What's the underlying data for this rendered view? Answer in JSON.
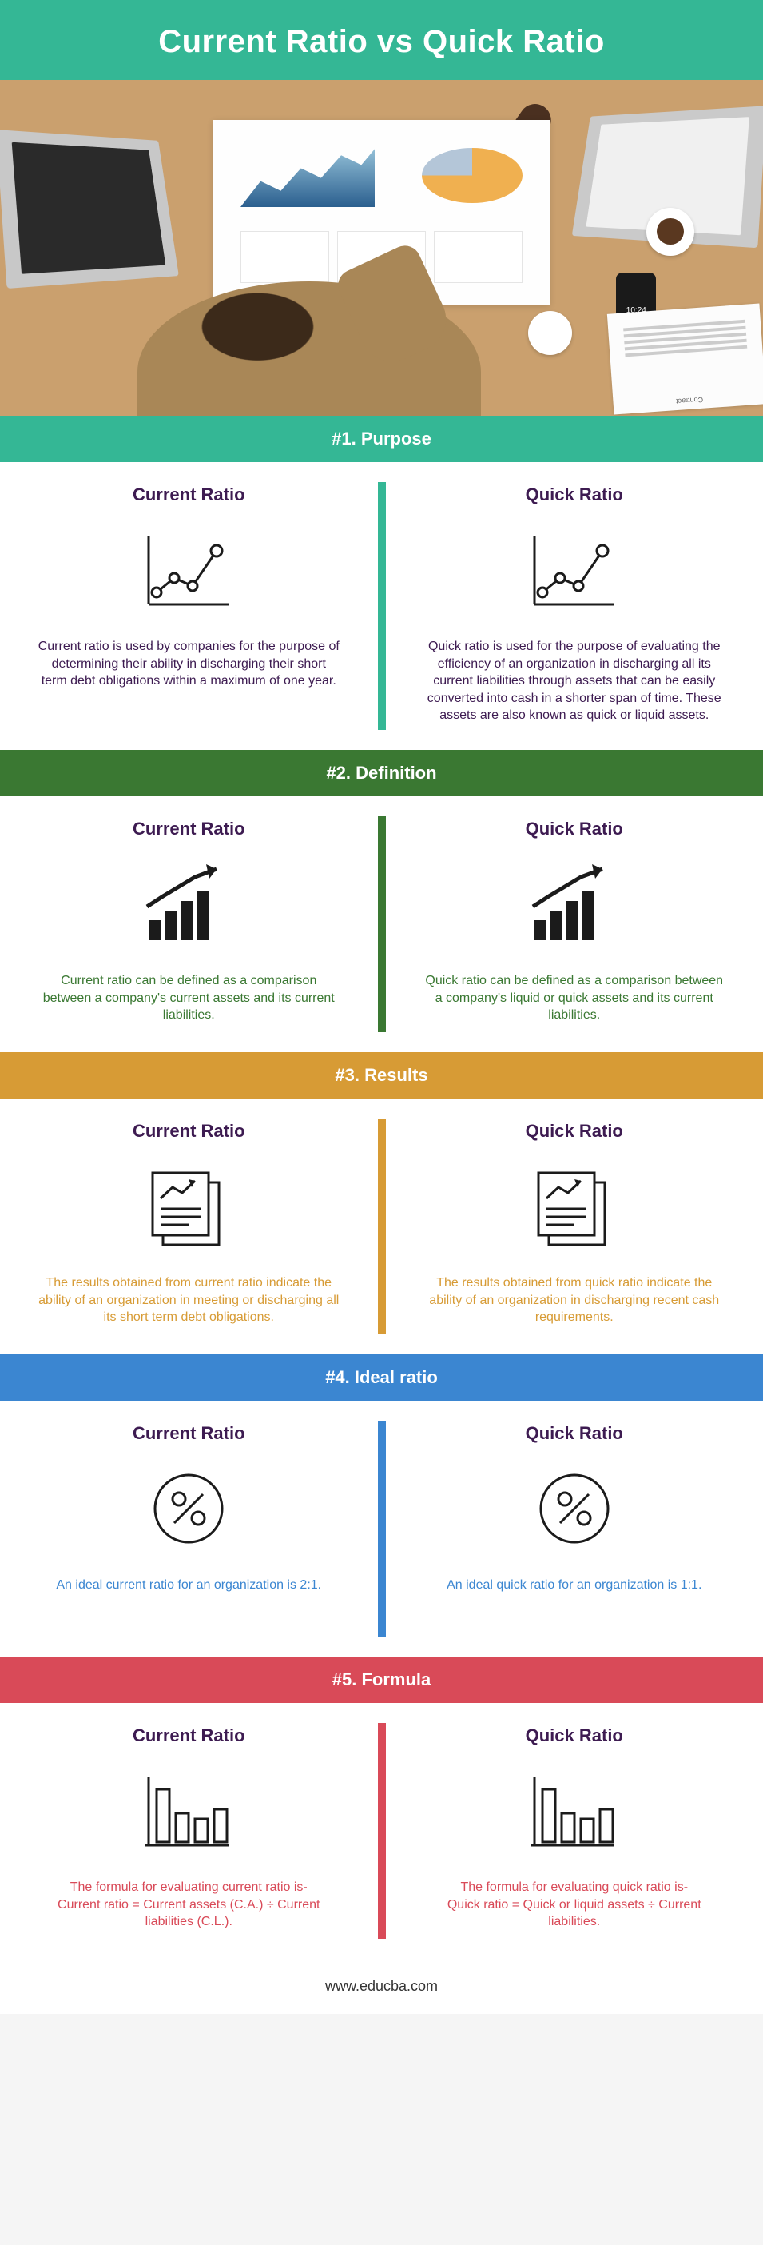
{
  "page_title": "Current Ratio vs Quick Ratio",
  "header_bg": "#34b795",
  "footer_text": "www.educba.com",
  "col_left_title": "Current Ratio",
  "col_right_title": "Quick Ratio",
  "title_color": "#3d1b51",
  "icon_stroke": "#1b1b1b",
  "sections": [
    {
      "num": "#1.",
      "label": "Purpose",
      "header_bg": "#34b795",
      "divider_bg": "#34b795",
      "text_color": "#3d1b51",
      "icon": "linechart",
      "left_text": "Current ratio is used by companies for the purpose of determining their ability in discharging their short term debt obligations within a maximum of one year.",
      "right_text": "Quick ratio is used for the purpose of evaluating the efficiency of an organization in discharging all its current liabilities through assets that can be easily converted into cash in a shorter span of time. These assets are also known as quick or liquid assets."
    },
    {
      "num": "#2.",
      "label": "Definition",
      "header_bg": "#3a7832",
      "divider_bg": "#3a7832",
      "text_color": "#3a7832",
      "icon": "growbar",
      "left_text": "Current ratio can be defined as a comparison between a company's current assets and its current liabilities.",
      "right_text": "Quick ratio can be defined as a comparison between a company's liquid or quick assets and its current liabilities."
    },
    {
      "num": "#3.",
      "label": "Results",
      "header_bg": "#d79b35",
      "divider_bg": "#d79b35",
      "text_color": "#d79b35",
      "icon": "docs",
      "left_text": "The results obtained from current ratio indicate the ability of an organization in meeting or discharging all its short term debt obligations.",
      "right_text": "The results obtained from quick ratio indicate the ability of an organization in discharging recent cash requirements."
    },
    {
      "num": "#4.",
      "label": "Ideal ratio",
      "header_bg": "#3b86d1",
      "divider_bg": "#3b86d1",
      "text_color": "#3b86d1",
      "icon": "percent",
      "left_text": "An ideal current ratio for an organization is 2:1.",
      "right_text": "An ideal quick ratio for an organization is 1:1."
    },
    {
      "num": "#5.",
      "label": "Formula",
      "header_bg": "#d94a58",
      "divider_bg": "#d94a58",
      "text_color": "#d94a58",
      "icon": "bars",
      "left_text": "The formula for evaluating current ratio is-\nCurrent ratio = Current assets (C.A.) ÷ Current liabilities (C.L.).",
      "right_text": "The formula for evaluating quick ratio is-\nQuick ratio = Quick or liquid assets ÷ Current liabilities."
    }
  ]
}
